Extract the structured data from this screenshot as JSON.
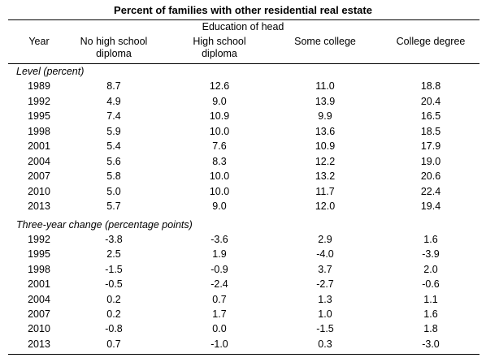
{
  "table": {
    "title": "Percent of families with other residential real estate",
    "group_header": "Education of head",
    "columns": [
      "Year",
      "No high school diploma",
      "High school diploma",
      "Some college",
      "College degree"
    ],
    "columns_display": [
      "Year",
      "No high school\ndiploma",
      "High school\ndiploma",
      "Some college",
      "College degree"
    ],
    "level_section": {
      "label": "Level (percent)",
      "rows": [
        [
          "1989",
          "8.7",
          "12.6",
          "11.0",
          "18.8"
        ],
        [
          "1992",
          "4.9",
          "9.0",
          "13.9",
          "20.4"
        ],
        [
          "1995",
          "7.4",
          "10.9",
          "9.9",
          "16.5"
        ],
        [
          "1998",
          "5.9",
          "10.0",
          "13.6",
          "18.5"
        ],
        [
          "2001",
          "5.4",
          "7.6",
          "10.9",
          "17.9"
        ],
        [
          "2004",
          "5.6",
          "8.3",
          "12.2",
          "19.0"
        ],
        [
          "2007",
          "5.8",
          "10.0",
          "13.2",
          "20.6"
        ],
        [
          "2010",
          "5.0",
          "10.0",
          "11.7",
          "22.4"
        ],
        [
          "2013",
          "5.7",
          "9.0",
          "12.0",
          "19.4"
        ]
      ]
    },
    "change_section": {
      "label": "Three-year change (percentage points)",
      "rows": [
        [
          "1992",
          "-3.8",
          "-3.6",
          "2.9",
          "1.6"
        ],
        [
          "1995",
          "2.5",
          "1.9",
          "-4.0",
          "-3.9"
        ],
        [
          "1998",
          "-1.5",
          "-0.9",
          "3.7",
          "2.0"
        ],
        [
          "2001",
          "-0.5",
          "-2.4",
          "-2.7",
          "-0.6"
        ],
        [
          "2004",
          "0.2",
          "0.7",
          "1.3",
          "1.1"
        ],
        [
          "2007",
          "0.2",
          "1.7",
          "1.0",
          "1.6"
        ],
        [
          "2010",
          "-0.8",
          "0.0",
          "-1.5",
          "1.8"
        ],
        [
          "2013",
          "0.7",
          "-1.0",
          "0.3",
          "-3.0"
        ]
      ]
    }
  }
}
